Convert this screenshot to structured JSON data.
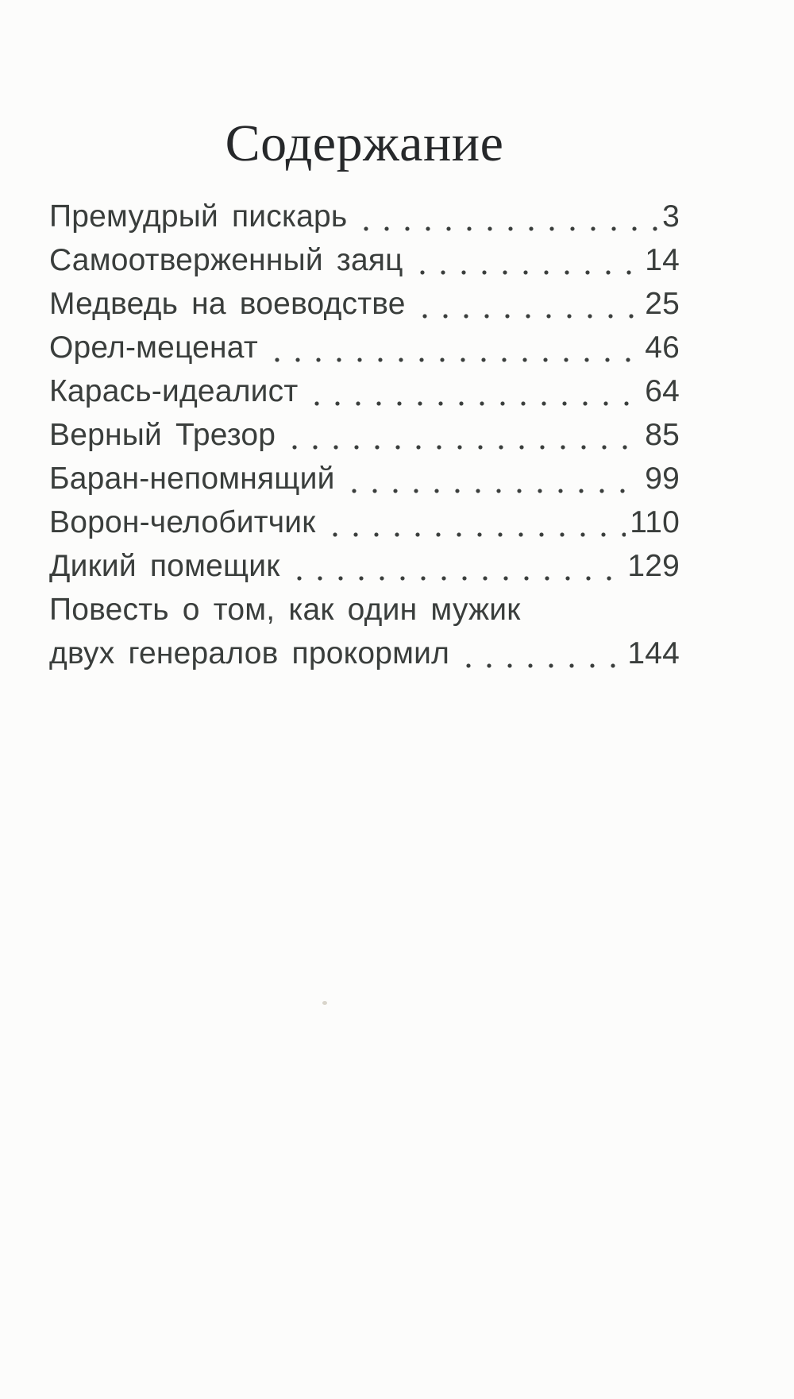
{
  "page": {
    "title": "Содержание"
  },
  "toc": {
    "entries": [
      {
        "title": "Премудрый пискарь",
        "page": "3"
      },
      {
        "title": "Самоотверженный заяц",
        "page": "14"
      },
      {
        "title": "Медведь на воеводстве",
        "page": "25"
      },
      {
        "title": "Орел-меценат",
        "page": "46"
      },
      {
        "title": "Карась-идеалист",
        "page": "64"
      },
      {
        "title": "Верный Трезор",
        "page": "85"
      },
      {
        "title": "Баран-непомнящий",
        "page": "99"
      },
      {
        "title": "Ворон-челобитчик",
        "page": "110"
      },
      {
        "title": "Дикий помещик",
        "page": "129"
      },
      {
        "title": "Повесть о том, как один мужик",
        "page": ""
      },
      {
        "title": "двух генералов прокормил",
        "page": "144"
      }
    ]
  },
  "colors": {
    "paper": "#fcfcfb",
    "heading_text": "#26282a",
    "body_text": "#3a3e3c"
  }
}
